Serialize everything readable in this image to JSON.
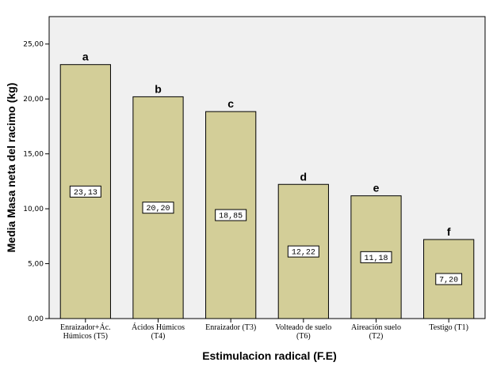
{
  "chart_data": {
    "type": "bar",
    "xlabel": "Estimulacion radical (F.E)",
    "ylabel": "Media Masa neta del racimo (kg)",
    "ylim": [
      0,
      27.5
    ],
    "yticks": [
      "0,00",
      "5,00",
      "10,00",
      "15,00",
      "20,00",
      "25,00"
    ],
    "ytick_values": [
      0,
      5,
      10,
      15,
      20,
      25
    ],
    "categories": [
      [
        "Enraizador+Ác.",
        "Húmicos (T5)"
      ],
      [
        "Ácidos Húmicos",
        "(T4)"
      ],
      [
        "Enraizador (T3)"
      ],
      [
        "Volteado de suelo",
        "(T6)"
      ],
      [
        "Aireación suelo",
        "(T2)"
      ],
      [
        "Testigo (T1)"
      ]
    ],
    "values": [
      23.13,
      20.2,
      18.85,
      12.22,
      11.18,
      7.2
    ],
    "value_labels": [
      "23,13",
      "20,20",
      "18,85",
      "12,22",
      "11,18",
      "7,20"
    ],
    "group_letters": [
      "a",
      "b",
      "c",
      "d",
      "e",
      "f"
    ],
    "grid": false,
    "colors": {
      "plot_background": "#f0f0f0",
      "bar_fill": "#d3ce98",
      "bar_stroke": "#000000",
      "label_box": "#ffffff"
    }
  }
}
